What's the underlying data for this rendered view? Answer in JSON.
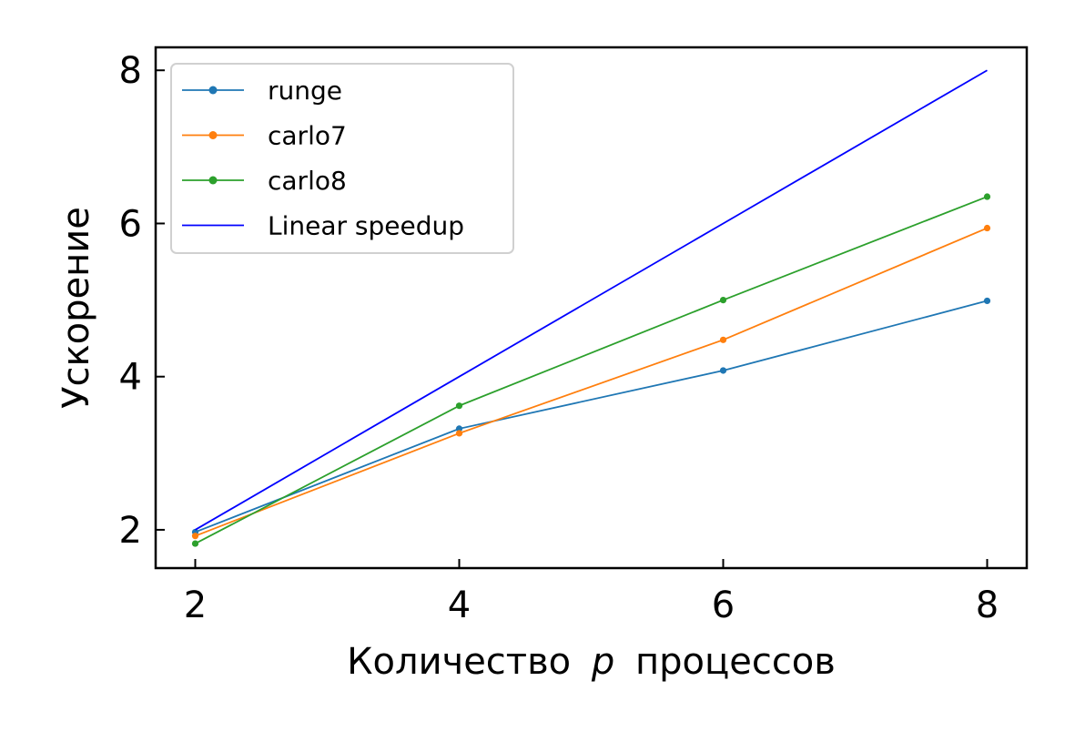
{
  "chart_data": {
    "type": "line",
    "xlabel_prefix": "Количество",
    "xlabel_var": "p",
    "xlabel_suffix": "процессов",
    "ylabel": "Ускорение",
    "xlim": [
      1.7,
      8.3
    ],
    "ylim": [
      1.5,
      8.3
    ],
    "x_ticks": [
      2,
      4,
      6,
      8
    ],
    "y_ticks": [
      2,
      4,
      6,
      8
    ],
    "grid": false,
    "legend_position": "upper-left",
    "series": [
      {
        "name": "runge",
        "color": "#1f77b4",
        "marker": true,
        "x": [
          2,
          4,
          6,
          8
        ],
        "y": [
          1.97,
          3.32,
          4.08,
          4.99
        ]
      },
      {
        "name": "carlo7",
        "color": "#ff7f0e",
        "marker": true,
        "x": [
          2,
          4,
          6,
          8
        ],
        "y": [
          1.92,
          3.26,
          4.48,
          5.94
        ]
      },
      {
        "name": "carlo8",
        "color": "#2ca02c",
        "marker": true,
        "x": [
          2,
          4,
          6,
          8
        ],
        "y": [
          1.82,
          3.62,
          5.0,
          6.35
        ]
      },
      {
        "name": "Linear speedup",
        "color": "#0000ff",
        "marker": false,
        "x": [
          2,
          4,
          6,
          8
        ],
        "y": [
          2,
          4,
          6,
          8
        ]
      }
    ]
  }
}
